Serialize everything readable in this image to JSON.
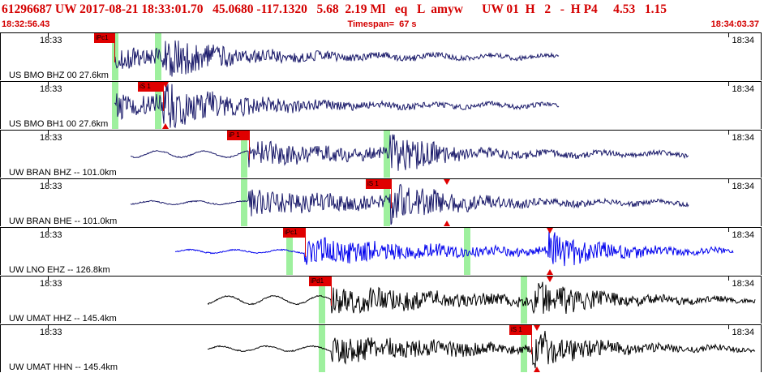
{
  "header": {
    "title": "61296687 UW 2017-08-21 18:33:01.70   45.0680 -117.1320   5.68  2.19 Ml   eq   L  amyw      UW 01  H   2   -  H P4     4.53   1.15",
    "start_time": "18:32:56.43",
    "timespan": "Timespan=  67 s",
    "end_time": "18:34:03.37"
  },
  "colors": {
    "pick": "#e00000",
    "text_red": "#d40000",
    "green_band": "#9ef09e",
    "trace_navy": "#1a1a6a",
    "trace_blue": "#0000ee",
    "trace_black": "#000000"
  },
  "channels": [
    {
      "label": "US BMO BHZ 00 27.6km",
      "tick_left": "18:33",
      "tick_right": "18:34",
      "trace_color": "#1a1a6a",
      "pick": "iPc1",
      "event_marker": "none"
    },
    {
      "label": "US BMO BH1 00 27.6km",
      "tick_left": "18:33",
      "tick_right": "18:34",
      "trace_color": "#1a1a6a",
      "pick": "iS 1",
      "event_marker": "triangle"
    },
    {
      "label": "UW BRAN BHZ -- 101.0km",
      "tick_left": "18:33",
      "tick_right": "18:34",
      "trace_color": "#1a1a6a",
      "pick": "iP 1",
      "event_marker": "none"
    },
    {
      "label": "UW BRAN BHE -- 101.0km",
      "tick_left": "18:33",
      "tick_right": "18:34",
      "trace_color": "#1a1a6a",
      "pick": "iS 1",
      "event_marker": "triangle"
    },
    {
      "label": "UW LNO EHZ -- 126.8km",
      "tick_left": "18:33",
      "tick_right": "18:34",
      "trace_color": "#0000ee",
      "pick": "iPc1",
      "event_marker": "triangle"
    },
    {
      "label": "UW UMAT HHZ -- 145.4km",
      "tick_left": "18:33",
      "tick_right": "18:34",
      "trace_color": "#000000",
      "pick": "iPd1",
      "event_marker": "triangle"
    },
    {
      "label": "UW UMAT HHN -- 145.4km",
      "tick_left": "18:33",
      "tick_right": "18:34",
      "trace_color": "#000000",
      "pick": "iS 1",
      "event_marker": "triangle"
    }
  ]
}
